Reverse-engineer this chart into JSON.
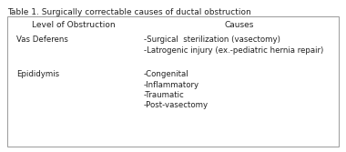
{
  "title": "Table 1. Surgically correctable causes of ductal obstruction",
  "col1_header": "Level of Obstruction",
  "col2_header": "Causes",
  "rows": [
    {
      "level": "Vas Deferens",
      "causes": [
        "-Surgical  sterilization (vasectomy)",
        "-Latrogenic injury (ex.-pediatric hernia repair)"
      ]
    },
    {
      "level": "Epididymis",
      "causes": [
        "-Congenital",
        "-Inflammatory",
        "-Traumatic",
        "-Post-vasectomy"
      ]
    }
  ],
  "title_fontsize": 6.5,
  "header_fontsize": 6.5,
  "body_fontsize": 6.2,
  "bg_color": "#ffffff",
  "border_color": "#999999",
  "text_color": "#222222",
  "fig_width": 3.8,
  "fig_height": 1.67,
  "dpi": 100
}
